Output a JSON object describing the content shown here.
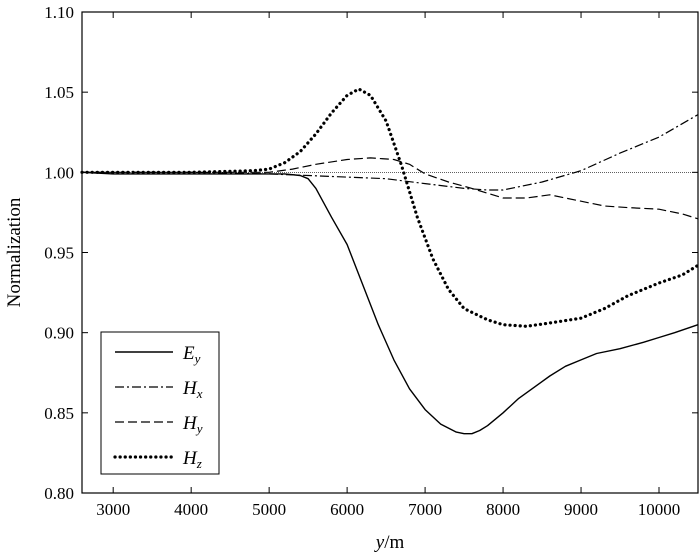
{
  "chart_data": {
    "type": "line",
    "xlabel_var": "y",
    "xlabel_unit": "/m",
    "ylabel": "Normalization",
    "xlim": [
      2600,
      10500
    ],
    "ylim": [
      0.8,
      1.1
    ],
    "xticks": [
      3000,
      4000,
      5000,
      6000,
      7000,
      8000,
      9000,
      10000
    ],
    "yticks": [
      "0.80",
      "0.85",
      "0.90",
      "0.95",
      "1.00",
      "1.05",
      "1.10"
    ],
    "reference_line": 1.0,
    "legend_position": "bottom-left",
    "series": [
      {
        "name": "E",
        "sub": "y",
        "dash": "solid",
        "points": [
          [
            2600,
            1.0
          ],
          [
            3000,
            0.999
          ],
          [
            4000,
            0.999
          ],
          [
            5000,
            0.999
          ],
          [
            5200,
            0.999
          ],
          [
            5400,
            0.998
          ],
          [
            5500,
            0.996
          ],
          [
            5600,
            0.99
          ],
          [
            5700,
            0.981
          ],
          [
            5800,
            0.972
          ],
          [
            6000,
            0.955
          ],
          [
            6200,
            0.93
          ],
          [
            6400,
            0.905
          ],
          [
            6600,
            0.883
          ],
          [
            6800,
            0.865
          ],
          [
            7000,
            0.852
          ],
          [
            7200,
            0.843
          ],
          [
            7400,
            0.838
          ],
          [
            7500,
            0.837
          ],
          [
            7600,
            0.837
          ],
          [
            7700,
            0.839
          ],
          [
            7800,
            0.842
          ],
          [
            8000,
            0.85
          ],
          [
            8200,
            0.859
          ],
          [
            8400,
            0.866
          ],
          [
            8600,
            0.873
          ],
          [
            8800,
            0.879
          ],
          [
            9000,
            0.883
          ],
          [
            9200,
            0.887
          ],
          [
            9500,
            0.89
          ],
          [
            9800,
            0.894
          ],
          [
            10000,
            0.897
          ],
          [
            10200,
            0.9
          ],
          [
            10500,
            0.905
          ]
        ]
      },
      {
        "name": "H",
        "sub": "x",
        "dash": "dashdot",
        "points": [
          [
            2600,
            1.0
          ],
          [
            3000,
            1.0
          ],
          [
            4000,
            1.0
          ],
          [
            5000,
            0.999
          ],
          [
            5500,
            0.998
          ],
          [
            6000,
            0.997
          ],
          [
            6500,
            0.996
          ],
          [
            7000,
            0.993
          ],
          [
            7500,
            0.99
          ],
          [
            7800,
            0.989
          ],
          [
            8000,
            0.989
          ],
          [
            8500,
            0.994
          ],
          [
            9000,
            1.001
          ],
          [
            9500,
            1.012
          ],
          [
            10000,
            1.022
          ],
          [
            10500,
            1.036
          ]
        ]
      },
      {
        "name": "H",
        "sub": "y",
        "dash": "dashed",
        "points": [
          [
            2600,
            1.0
          ],
          [
            3000,
            1.0
          ],
          [
            4000,
            1.0
          ],
          [
            5000,
            1.0
          ],
          [
            5300,
            1.002
          ],
          [
            5600,
            1.005
          ],
          [
            6000,
            1.008
          ],
          [
            6300,
            1.009
          ],
          [
            6600,
            1.008
          ],
          [
            6800,
            1.005
          ],
          [
            7000,
            0.999
          ],
          [
            7300,
            0.994
          ],
          [
            7600,
            0.99
          ],
          [
            8000,
            0.984
          ],
          [
            8300,
            0.984
          ],
          [
            8600,
            0.986
          ],
          [
            8800,
            0.984
          ],
          [
            9000,
            0.982
          ],
          [
            9300,
            0.979
          ],
          [
            9600,
            0.978
          ],
          [
            10000,
            0.977
          ],
          [
            10300,
            0.974
          ],
          [
            10500,
            0.971
          ]
        ]
      },
      {
        "name": "H",
        "sub": "z",
        "dash": "dotted",
        "points": [
          [
            2600,
            1.0
          ],
          [
            3000,
            1.0
          ],
          [
            4000,
            1.0
          ],
          [
            4800,
            1.001
          ],
          [
            5000,
            1.002
          ],
          [
            5200,
            1.006
          ],
          [
            5400,
            1.013
          ],
          [
            5600,
            1.024
          ],
          [
            5800,
            1.037
          ],
          [
            6000,
            1.048
          ],
          [
            6150,
            1.052
          ],
          [
            6300,
            1.048
          ],
          [
            6500,
            1.032
          ],
          [
            6700,
            1.004
          ],
          [
            6900,
            0.972
          ],
          [
            7100,
            0.946
          ],
          [
            7300,
            0.927
          ],
          [
            7500,
            0.915
          ],
          [
            7800,
            0.908
          ],
          [
            8000,
            0.905
          ],
          [
            8300,
            0.904
          ],
          [
            8600,
            0.906
          ],
          [
            9000,
            0.909
          ],
          [
            9300,
            0.915
          ],
          [
            9600,
            0.923
          ],
          [
            10000,
            0.931
          ],
          [
            10300,
            0.936
          ],
          [
            10500,
            0.942
          ]
        ]
      }
    ]
  }
}
